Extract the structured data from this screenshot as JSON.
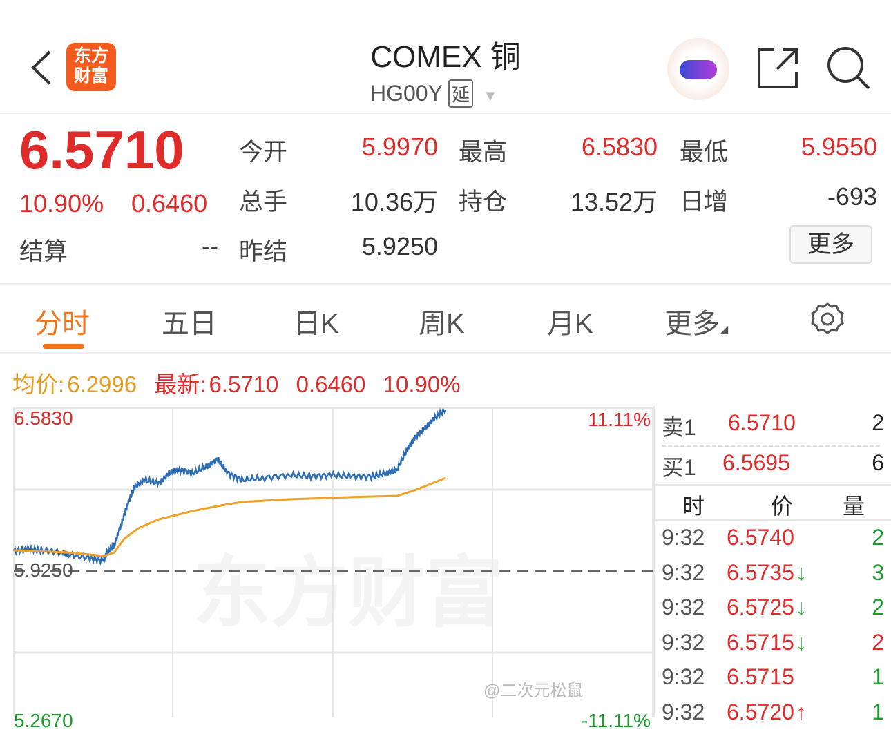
{
  "header": {
    "title": "COMEX 铜",
    "code": "HG00Y",
    "delay_badge": "延",
    "logo_text": "东方财富"
  },
  "quote": {
    "price": "6.5710",
    "change_pct": "10.90%",
    "change": "0.6460",
    "settle_label": "结算",
    "settle": "--",
    "fields": [
      {
        "label": "今开",
        "value": "5.9970",
        "color": "red"
      },
      {
        "label": "最高",
        "value": "6.5830",
        "color": "red"
      },
      {
        "label": "最低",
        "value": "5.9550",
        "color": "red"
      },
      {
        "label": "总手",
        "value": "10.36万",
        "color": "dark"
      },
      {
        "label": "持仓",
        "value": "13.52万",
        "color": "dark"
      },
      {
        "label": "日增",
        "value": "-693",
        "color": "dark"
      },
      {
        "label": "昨结",
        "value": "5.9250",
        "color": "dark"
      }
    ],
    "more_label": "更多"
  },
  "tabs": [
    {
      "label": "分时",
      "active": true
    },
    {
      "label": "五日"
    },
    {
      "label": "日K"
    },
    {
      "label": "周K"
    },
    {
      "label": "月K"
    },
    {
      "label": "更多"
    }
  ],
  "info": {
    "avg_label": "均价:",
    "avg": "6.2996",
    "latest_label": "最新:",
    "latest": "6.5710",
    "change": "0.6460",
    "pct": "10.90%"
  },
  "orderbook": {
    "ask_label": "卖1",
    "ask_price": "6.5710",
    "ask_vol": "2",
    "bid_label": "买1",
    "bid_price": "6.5695",
    "bid_vol": "6",
    "headers": [
      "时",
      "价",
      "量"
    ],
    "trades": [
      {
        "time": "9:32",
        "price": "6.5740",
        "arrow": "",
        "vol": "2",
        "vol_color": "green"
      },
      {
        "time": "9:32",
        "price": "6.5735",
        "arrow": "↓",
        "vol": "3",
        "vol_color": "green"
      },
      {
        "time": "9:32",
        "price": "6.5725",
        "arrow": "↓",
        "vol": "2",
        "vol_color": "green"
      },
      {
        "time": "9:32",
        "price": "6.5715",
        "arrow": "↓",
        "vol": "2",
        "vol_color": "red"
      },
      {
        "time": "9:32",
        "price": "6.5715",
        "arrow": "",
        "vol": "1",
        "vol_color": "green"
      },
      {
        "time": "9:32",
        "price": "6.5720",
        "arrow": "↑",
        "vol": "1",
        "vol_color": "green"
      }
    ]
  },
  "watermark": "东方财富",
  "credit": "@二次元松鼠",
  "chart_data": {
    "type": "line",
    "ylim": [
      5.267,
      6.583
    ],
    "y_labels": {
      "top": "6.5830",
      "mid": "5.9250",
      "bottom": "5.2670"
    },
    "pct_labels": {
      "top": "11.11%",
      "bottom": "-11.11%"
    },
    "grid": true,
    "x_unit": "session progress %",
    "series": [
      {
        "color": "#2d6db5",
        "points": [
          [
            0,
            6.006
          ],
          [
            2.2,
            6.014
          ],
          [
            4.3,
            6.009
          ],
          [
            7.6,
            6.0
          ],
          [
            8.6,
            5.992
          ],
          [
            11.9,
            5.978
          ],
          [
            14.1,
            5.967
          ],
          [
            14.6,
            6.0
          ],
          [
            15.7,
            6.028
          ],
          [
            16.8,
            6.112
          ],
          [
            17.8,
            6.195
          ],
          [
            18.9,
            6.265
          ],
          [
            20.5,
            6.293
          ],
          [
            22.7,
            6.279
          ],
          [
            24.3,
            6.321
          ],
          [
            25.9,
            6.335
          ],
          [
            28.1,
            6.321
          ],
          [
            30.3,
            6.349
          ],
          [
            31.9,
            6.377
          ],
          [
            33.5,
            6.321
          ],
          [
            35.7,
            6.293
          ],
          [
            38.9,
            6.301
          ],
          [
            43.2,
            6.313
          ],
          [
            46.5,
            6.307
          ],
          [
            49.7,
            6.313
          ],
          [
            53.0,
            6.307
          ],
          [
            56.2,
            6.307
          ],
          [
            58.4,
            6.321
          ],
          [
            60.0,
            6.335
          ],
          [
            61.6,
            6.418
          ],
          [
            62.7,
            6.46
          ],
          [
            64.3,
            6.502
          ],
          [
            65.9,
            6.544
          ],
          [
            67.6,
            6.577
          ]
        ]
      },
      {
        "color": "#eea22a",
        "points": [
          [
            0,
            6.009
          ],
          [
            8.6,
            6.0
          ],
          [
            14.1,
            5.986
          ],
          [
            15.7,
            6.0
          ],
          [
            17.3,
            6.056
          ],
          [
            19.5,
            6.098
          ],
          [
            22.7,
            6.134
          ],
          [
            28.1,
            6.168
          ],
          [
            32.4,
            6.19
          ],
          [
            35.7,
            6.204
          ],
          [
            43.2,
            6.215
          ],
          [
            51.9,
            6.223
          ],
          [
            60.0,
            6.229
          ],
          [
            62.7,
            6.251
          ],
          [
            67.6,
            6.301
          ]
        ]
      }
    ]
  }
}
